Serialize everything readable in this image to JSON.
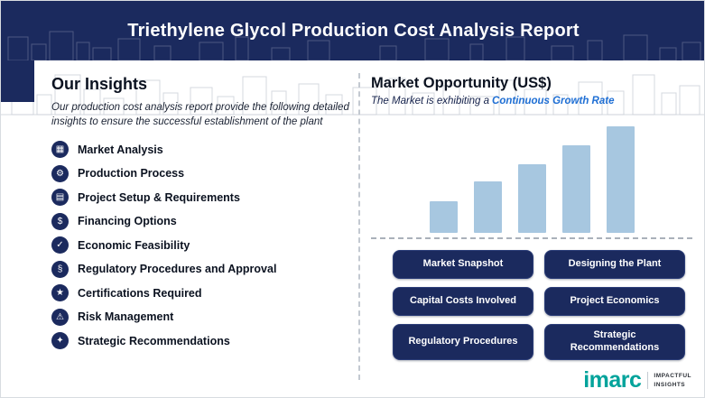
{
  "header": {
    "title": "Triethylene Glycol Production Cost Analysis Report"
  },
  "insights": {
    "heading": "Our Insights",
    "description": "Our production cost analysis report provide the following detailed insights to ensure the successful establishment of the plant",
    "items": [
      {
        "label": "Market Analysis",
        "icon": "chart-icon",
        "glyph": "▦"
      },
      {
        "label": "Production Process",
        "icon": "gear-icon",
        "glyph": "⚙"
      },
      {
        "label": "Project Setup & Requirements",
        "icon": "clipboard-icon",
        "glyph": "▤"
      },
      {
        "label": "Financing Options",
        "icon": "dollar-icon",
        "glyph": "$"
      },
      {
        "label": "Economic Feasibility",
        "icon": "check-icon",
        "glyph": "✓"
      },
      {
        "label": "Regulatory Procedures and Approval",
        "icon": "regulation-icon",
        "glyph": "§"
      },
      {
        "label": "Certifications Required",
        "icon": "certificate-icon",
        "glyph": "★"
      },
      {
        "label": "Risk Management",
        "icon": "warning-icon",
        "glyph": "⚠"
      },
      {
        "label": "Strategic Recommendations",
        "icon": "strategy-icon",
        "glyph": "✦"
      }
    ]
  },
  "market": {
    "heading": "Market Opportunity (US$)",
    "subtitle_prefix": "The Market is exhibiting a",
    "subtitle_highlight": "Continuous Growth Rate"
  },
  "chart_data": {
    "type": "bar",
    "title": "Market Opportunity (US$)",
    "categories": [
      "",
      "",
      "",
      "",
      ""
    ],
    "values": [
      30,
      48,
      64,
      82,
      100
    ],
    "xlabel": "",
    "ylabel": "",
    "ylim": [
      0,
      100
    ],
    "grid": false,
    "legend": false,
    "bar_color": "#a7c7e0",
    "note": "five unlabeled ascending bars indicating continuous growth"
  },
  "buttons": [
    "Market Snapshot",
    "Designing the Plant",
    "Capital Costs Involved",
    "Project Economics",
    "Regulatory Procedures",
    "Strategic Recommendations"
  ],
  "logo": {
    "text": "imarc",
    "tagline1": "IMPACTFUL",
    "tagline2": "INSIGHTS"
  },
  "colors": {
    "navy": "#1b2a5e",
    "accent-blue": "#1f6fd4",
    "bar-blue": "#a7c7e0",
    "teal": "#00a39b"
  }
}
